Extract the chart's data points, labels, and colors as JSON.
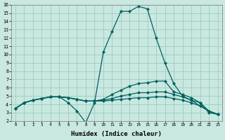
{
  "xlabel": "Humidex (Indice chaleur)",
  "ylabel": "",
  "xlim": [
    -0.5,
    23.5
  ],
  "ylim": [
    2,
    16
  ],
  "xticks": [
    0,
    1,
    2,
    3,
    4,
    5,
    6,
    7,
    8,
    9,
    10,
    11,
    12,
    13,
    14,
    15,
    16,
    17,
    18,
    19,
    20,
    21,
    22,
    23
  ],
  "xtick_labels": [
    "0",
    "1",
    "2",
    "3",
    "4",
    "5",
    "6",
    "7",
    "8",
    "9",
    "10",
    "11",
    "12",
    "13",
    "14",
    "15",
    "16",
    "17",
    "18",
    "19",
    "20",
    "21",
    "22",
    "23"
  ],
  "yticks": [
    2,
    3,
    4,
    5,
    6,
    7,
    8,
    9,
    10,
    11,
    12,
    13,
    14,
    15,
    16
  ],
  "ytick_labels": [
    "2",
    "3",
    "4",
    "5",
    "6",
    "7",
    "8",
    "9",
    "10",
    "11",
    "12",
    "13",
    "14",
    "15",
    "16"
  ],
  "background_color": "#c8e8e0",
  "grid_color": "#a0ccc0",
  "line_color": "#006060",
  "line_width": 0.9,
  "marker": "D",
  "marker_size": 2.0,
  "lines": [
    {
      "x": [
        0,
        1,
        2,
        3,
        4,
        5,
        6,
        7,
        8,
        9,
        10,
        11,
        12,
        13,
        14,
        15,
        16,
        17,
        18,
        19,
        20,
        21,
        22,
        23
      ],
      "y": [
        3.5,
        4.2,
        4.5,
        4.7,
        4.9,
        4.9,
        4.2,
        3.2,
        1.8,
        4.2,
        10.3,
        12.8,
        15.2,
        15.2,
        15.8,
        15.5,
        12.0,
        9.0,
        6.5,
        5.0,
        4.5,
        4.2,
        3.0,
        2.8
      ]
    },
    {
      "x": [
        0,
        1,
        2,
        3,
        4,
        5,
        6,
        7,
        8,
        9,
        10,
        11,
        12,
        13,
        14,
        15,
        16,
        17,
        18,
        19,
        20,
        21,
        22,
        23
      ],
      "y": [
        3.5,
        4.2,
        4.5,
        4.7,
        4.9,
        4.9,
        4.8,
        4.6,
        4.4,
        4.4,
        4.6,
        5.2,
        5.7,
        6.2,
        6.5,
        6.6,
        6.8,
        6.8,
        5.5,
        5.2,
        4.8,
        4.2,
        3.2,
        2.8
      ]
    },
    {
      "x": [
        0,
        1,
        2,
        3,
        4,
        5,
        6,
        7,
        8,
        9,
        10,
        11,
        12,
        13,
        14,
        15,
        16,
        17,
        18,
        19,
        20,
        21,
        22,
        23
      ],
      "y": [
        3.5,
        4.2,
        4.5,
        4.7,
        4.9,
        4.9,
        4.8,
        4.6,
        4.4,
        4.4,
        4.5,
        4.7,
        5.0,
        5.2,
        5.4,
        5.4,
        5.5,
        5.5,
        5.2,
        4.9,
        4.5,
        3.8,
        3.2,
        2.8
      ]
    },
    {
      "x": [
        0,
        1,
        2,
        3,
        4,
        5,
        6,
        7,
        8,
        9,
        10,
        11,
        12,
        13,
        14,
        15,
        16,
        17,
        18,
        19,
        20,
        21,
        22,
        23
      ],
      "y": [
        3.5,
        4.2,
        4.5,
        4.7,
        4.9,
        4.9,
        4.8,
        4.6,
        4.4,
        4.4,
        4.4,
        4.5,
        4.6,
        4.7,
        4.8,
        4.8,
        4.9,
        4.9,
        4.7,
        4.5,
        4.2,
        3.8,
        3.2,
        2.8
      ]
    }
  ]
}
